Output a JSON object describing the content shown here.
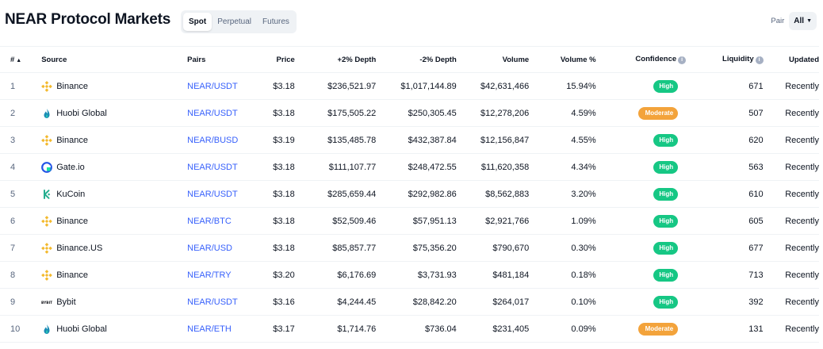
{
  "header": {
    "title": "NEAR Protocol Markets",
    "tabs": [
      {
        "label": "Spot",
        "active": true
      },
      {
        "label": "Perpetual",
        "active": false
      },
      {
        "label": "Futures",
        "active": false
      }
    ],
    "pair_label": "Pair",
    "pair_value": "All"
  },
  "colors": {
    "link": "#3861fb",
    "high": "#16c784",
    "moderate": "#f3a33b"
  },
  "table": {
    "columns": {
      "rank": "#",
      "source": "Source",
      "pairs": "Pairs",
      "price": "Price",
      "depth_plus": "+2% Depth",
      "depth_minus": "-2% Depth",
      "volume": "Volume",
      "volume_pct": "Volume %",
      "confidence": "Confidence",
      "liquidity": "Liquidity",
      "updated": "Updated"
    },
    "rows": [
      {
        "rank": "1",
        "source": "Binance",
        "icon": "binance-logo-icon",
        "pair": "NEAR/USDT",
        "price": "$3.18",
        "depth_plus": "$236,521.97",
        "depth_minus": "$1,017,144.89",
        "volume": "$42,631,466",
        "volume_pct": "15.94%",
        "confidence": "High",
        "liquidity": "671",
        "updated": "Recently"
      },
      {
        "rank": "2",
        "source": "Huobi Global",
        "icon": "huobi-logo-icon",
        "pair": "NEAR/USDT",
        "price": "$3.18",
        "depth_plus": "$175,505.22",
        "depth_minus": "$250,305.45",
        "volume": "$12,278,206",
        "volume_pct": "4.59%",
        "confidence": "Moderate",
        "liquidity": "507",
        "updated": "Recently"
      },
      {
        "rank": "3",
        "source": "Binance",
        "icon": "binance-logo-icon",
        "pair": "NEAR/BUSD",
        "price": "$3.19",
        "depth_plus": "$135,485.78",
        "depth_minus": "$432,387.84",
        "volume": "$12,156,847",
        "volume_pct": "4.55%",
        "confidence": "High",
        "liquidity": "620",
        "updated": "Recently"
      },
      {
        "rank": "4",
        "source": "Gate.io",
        "icon": "gateio-logo-icon",
        "pair": "NEAR/USDT",
        "price": "$3.18",
        "depth_plus": "$111,107.77",
        "depth_minus": "$248,472.55",
        "volume": "$11,620,358",
        "volume_pct": "4.34%",
        "confidence": "High",
        "liquidity": "563",
        "updated": "Recently"
      },
      {
        "rank": "5",
        "source": "KuCoin",
        "icon": "kucoin-logo-icon",
        "pair": "NEAR/USDT",
        "price": "$3.18",
        "depth_plus": "$285,659.44",
        "depth_minus": "$292,982.86",
        "volume": "$8,562,883",
        "volume_pct": "3.20%",
        "confidence": "High",
        "liquidity": "610",
        "updated": "Recently"
      },
      {
        "rank": "6",
        "source": "Binance",
        "icon": "binance-logo-icon",
        "pair": "NEAR/BTC",
        "price": "$3.18",
        "depth_plus": "$52,509.46",
        "depth_minus": "$57,951.13",
        "volume": "$2,921,766",
        "volume_pct": "1.09%",
        "confidence": "High",
        "liquidity": "605",
        "updated": "Recently"
      },
      {
        "rank": "7",
        "source": "Binance.US",
        "icon": "binance-logo-icon",
        "pair": "NEAR/USD",
        "price": "$3.18",
        "depth_plus": "$85,857.77",
        "depth_minus": "$75,356.20",
        "volume": "$790,670",
        "volume_pct": "0.30%",
        "confidence": "High",
        "liquidity": "677",
        "updated": "Recently"
      },
      {
        "rank": "8",
        "source": "Binance",
        "icon": "binance-logo-icon",
        "pair": "NEAR/TRY",
        "price": "$3.20",
        "depth_plus": "$6,176.69",
        "depth_minus": "$3,731.93",
        "volume": "$481,184",
        "volume_pct": "0.18%",
        "confidence": "High",
        "liquidity": "713",
        "updated": "Recently"
      },
      {
        "rank": "9",
        "source": "Bybit",
        "icon": "bybit-logo-icon",
        "pair": "NEAR/USDT",
        "price": "$3.16",
        "depth_plus": "$4,244.45",
        "depth_minus": "$28,842.20",
        "volume": "$264,017",
        "volume_pct": "0.10%",
        "confidence": "High",
        "liquidity": "392",
        "updated": "Recently"
      },
      {
        "rank": "10",
        "source": "Huobi Global",
        "icon": "huobi-logo-icon",
        "pair": "NEAR/ETH",
        "price": "$3.17",
        "depth_plus": "$1,714.76",
        "depth_minus": "$736.04",
        "volume": "$231,405",
        "volume_pct": "0.09%",
        "confidence": "Moderate",
        "liquidity": "131",
        "updated": "Recently"
      }
    ]
  }
}
